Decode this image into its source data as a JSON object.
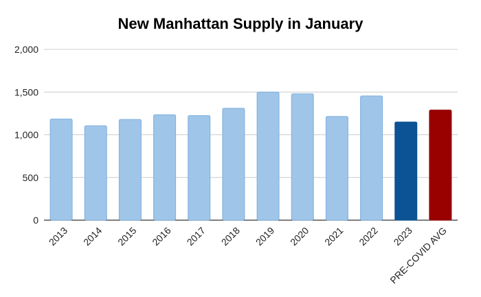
{
  "chart_data": {
    "type": "bar",
    "title": "New Manhattan Supply in January",
    "xlabel": "",
    "ylabel": "",
    "categories": [
      "2013",
      "2014",
      "2015",
      "2016",
      "2017",
      "2018",
      "2019",
      "2020",
      "2021",
      "2022",
      "2023",
      "PRE-COVID AVG"
    ],
    "values": [
      1185,
      1105,
      1180,
      1235,
      1225,
      1310,
      1500,
      1480,
      1215,
      1455,
      1150,
      1290
    ],
    "bar_colors": [
      "#9fc5e8",
      "#9fc5e8",
      "#9fc5e8",
      "#9fc5e8",
      "#9fc5e8",
      "#9fc5e8",
      "#9fc5e8",
      "#9fc5e8",
      "#9fc5e8",
      "#9fc5e8",
      "#0b5394",
      "#990000"
    ],
    "ylim": [
      0,
      2000
    ],
    "yticks": [
      0,
      500,
      1000,
      1500,
      2000
    ],
    "ytick_labels": [
      "0",
      "500",
      "1,000",
      "1,500",
      "2,000"
    ],
    "grid": true,
    "legend": "none"
  }
}
